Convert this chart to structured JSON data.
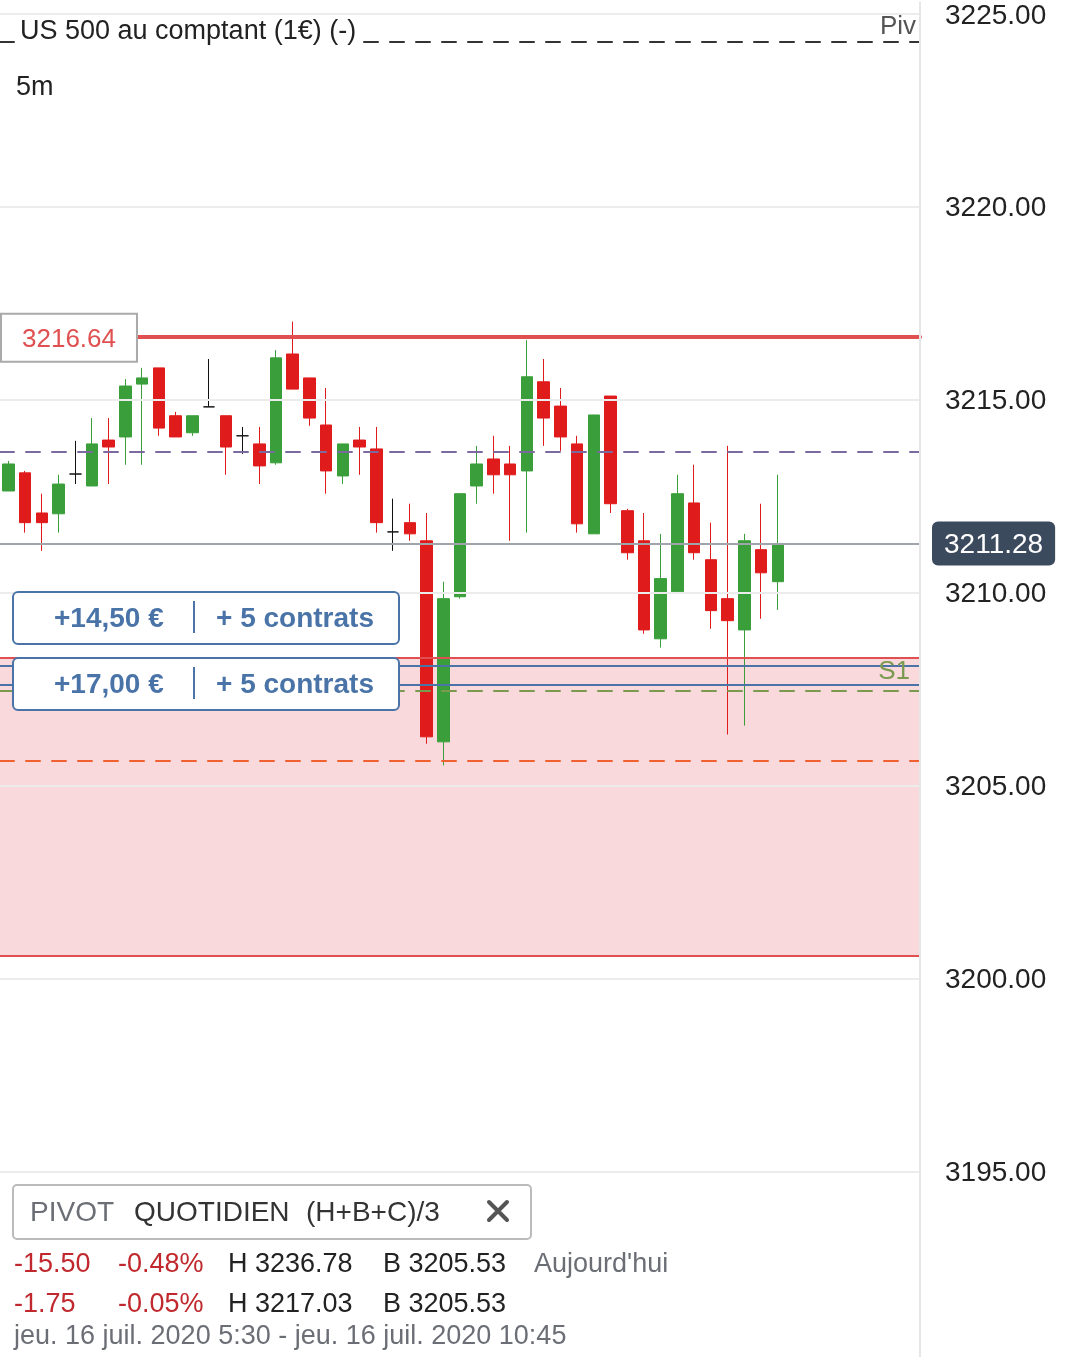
{
  "chart_data": {
    "type": "candlestick",
    "title": "US 500 au comptant (1€) (-)",
    "categories": [
      null,
      null,
      null,
      null,
      null,
      null,
      null,
      null,
      null,
      null,
      null,
      null,
      null,
      null,
      null,
      null,
      null,
      null,
      null,
      null,
      null,
      null,
      null,
      null,
      null,
      null,
      null,
      null,
      null,
      null,
      null,
      null,
      null,
      null,
      null,
      null,
      null,
      null,
      null,
      null,
      null,
      null,
      null,
      null,
      null,
      null,
      null,
      null,
      null,
      null,
      null,
      null,
      null,
      null,
      null
    ],
    "ohlc": [
      [
        3212.64,
        3213.42,
        3212.64,
        3213.34
      ],
      [
        3213.11,
        3213.16,
        3211.56,
        3211.82
      ],
      [
        3212.07,
        3212.57,
        3211.09,
        3211.82
      ],
      [
        3212.05,
        3213.06,
        3211.56,
        3212.82
      ],
      [
        3213.08,
        3213.94,
        3212.82,
        3213.08
      ],
      [
        3212.77,
        3214.53,
        3212.77,
        3213.86
      ],
      [
        3213.96,
        3214.53,
        3212.82,
        3213.78
      ],
      [
        3214.04,
        3215.54,
        3213.32,
        3215.36
      ],
      [
        3215.41,
        3215.83,
        3213.32,
        3215.57
      ],
      [
        3215.83,
        3215.83,
        3214.07,
        3214.27
      ],
      [
        3214.59,
        3214.69,
        3214.04,
        3214.04
      ],
      [
        3214.15,
        3214.59,
        3214.07,
        3214.59
      ],
      [
        3214.82,
        3216.06,
        3214.82,
        3214.82
      ],
      [
        3214.59,
        3214.59,
        3213.06,
        3213.78
      ],
      [
        3214.07,
        3214.3,
        3213.6,
        3214.07
      ],
      [
        3213.86,
        3214.3,
        3212.82,
        3213.29
      ],
      [
        3213.37,
        3216.29,
        3213.32,
        3216.09
      ],
      [
        3216.19,
        3217.03,
        3215.28,
        3215.28
      ],
      [
        3215.57,
        3215.57,
        3214.33,
        3214.53
      ],
      [
        3214.35,
        3215.31,
        3212.57,
        3213.16
      ],
      [
        3213.03,
        3213.86,
        3212.82,
        3213.86
      ],
      [
        3213.96,
        3214.3,
        3213.06,
        3213.78
      ],
      [
        3213.73,
        3214.3,
        3211.56,
        3211.82
      ],
      [
        3211.58,
        3212.44,
        3211.09,
        3211.58
      ],
      [
        3211.82,
        3212.31,
        3211.35,
        3211.53
      ],
      [
        3211.35,
        3212.07,
        3206.09,
        3206.27
      ],
      [
        3206.14,
        3210.29,
        3205.53,
        3209.85
      ],
      [
        3209.9,
        3212.57,
        3209.85,
        3212.57
      ],
      [
        3212.77,
        3213.81,
        3212.31,
        3213.34
      ],
      [
        3213.47,
        3214.07,
        3212.57,
        3213.06
      ],
      [
        3213.34,
        3213.81,
        3211.35,
        3213.06
      ],
      [
        3213.16,
        3216.55,
        3211.56,
        3215.6
      ],
      [
        3215.47,
        3216.06,
        3213.81,
        3214.53
      ],
      [
        3214.84,
        3215.31,
        3213.68,
        3214.04
      ],
      [
        3213.86,
        3214.07,
        3211.56,
        3211.79
      ],
      [
        3211.53,
        3214.61,
        3211.53,
        3214.61
      ],
      [
        3215.1,
        3215.1,
        3212.07,
        3212.31
      ],
      [
        3212.13,
        3212.18,
        3210.86,
        3211.04
      ],
      [
        3211.35,
        3212.07,
        3208.94,
        3209.04
      ],
      [
        3208.81,
        3211.53,
        3208.58,
        3210.37
      ],
      [
        3210.03,
        3213.06,
        3210.03,
        3212.57
      ],
      [
        3212.33,
        3213.32,
        3210.86,
        3211.04
      ],
      [
        3210.86,
        3211.82,
        3209.07,
        3209.54
      ],
      [
        3209.85,
        3213.81,
        3206.33,
        3209.28
      ],
      [
        3209.04,
        3211.53,
        3206.56,
        3211.35
      ],
      [
        3211.12,
        3212.31,
        3209.33,
        3210.52
      ],
      [
        3210.29,
        3213.06,
        3209.56,
        3211.28
      ],
      null,
      null,
      null,
      null,
      null,
      null,
      null,
      null
    ],
    "colors": [
      "#3a9f3a",
      "#e01b1b",
      "#e01b1b",
      "#3a9f3a",
      "#111111",
      "#3a9f3a",
      "#e01b1b",
      "#3a9f3a",
      "#3a9f3a",
      "#e01b1b",
      "#e01b1b",
      "#3a9f3a",
      "#111111",
      "#e01b1b",
      "#111111",
      "#e01b1b",
      "#3a9f3a",
      "#e01b1b",
      "#e01b1b",
      "#e01b1b",
      "#3a9f3a",
      "#e01b1b",
      "#e01b1b",
      "#111111",
      "#e01b1b",
      "#e01b1b",
      "#3a9f3a",
      "#3a9f3a",
      "#3a9f3a",
      "#e01b1b",
      "#e01b1b",
      "#3a9f3a",
      "#e01b1b",
      "#e01b1b",
      "#e01b1b",
      "#3a9f3a",
      "#e01b1b",
      "#e01b1b",
      "#e01b1b",
      "#3a9f3a",
      "#3a9f3a",
      "#e01b1b",
      "#e01b1b",
      "#e01b1b",
      "#3a9f3a",
      "#e01b1b",
      "#3a9f3a",
      null,
      null,
      null,
      null,
      null,
      null,
      null,
      null
    ],
    "ylim": [
      3190.2,
      3225.3
    ],
    "yticks": [
      {
        "value": 3195,
        "label": "3195.00"
      },
      {
        "value": 3200,
        "label": "3200.00"
      },
      {
        "value": 3205,
        "label": "3205.00"
      },
      {
        "value": 3210,
        "label": "3210.00"
      },
      {
        "value": 3215,
        "label": "3215.00"
      },
      {
        "value": 3220,
        "label": "3220.00"
      },
      {
        "value": 3225,
        "label": "3225.00"
      }
    ],
    "tick_labels": "y",
    "grid": "y",
    "bands": [
      {
        "axis": "y",
        "from": 3200.6,
        "to": 3208.32,
        "color": "#f9d9dc"
      }
    ],
    "ref_lines": [
      {
        "axis": "y",
        "value": 3224.27,
        "label": "Piv",
        "color": "#333333",
        "line_style": "dashed"
      },
      {
        "axis": "y",
        "value": 3216.64,
        "label": "3216.64",
        "color": "#e05050",
        "line_style": "solid"
      },
      {
        "axis": "y",
        "value": 3213.65,
        "color": "#7b6aa0",
        "line_style": "dashed"
      },
      {
        "axis": "y",
        "value": 3211.28,
        "label": "3211.28",
        "color": "#a0a4ab",
        "line_style": "solid"
      },
      {
        "axis": "y",
        "value": 3208.32,
        "color": "#e05050",
        "line_style": "solid"
      },
      {
        "axis": "y",
        "value": 3200.6,
        "color": "#e05050",
        "line_style": "solid"
      },
      {
        "axis": "y",
        "value": 3208.11,
        "color": "#4a74a8",
        "line_style": "solid"
      },
      {
        "axis": "y",
        "value": 3207.62,
        "color": "#4a74a8",
        "line_style": "solid"
      },
      {
        "axis": "y",
        "value": 3207.46,
        "label": "S1",
        "color": "#7a9a50",
        "line_style": "dashed"
      },
      {
        "axis": "y",
        "value": 3205.65,
        "color": "#f06030",
        "line_style": "dashed"
      }
    ],
    "annotations": [
      "5m",
      "+14,50 €",
      "+ 5 contrats",
      "+17,00 €",
      "+ 5 contrats",
      "PIVOT",
      "QUOTIDIEN",
      "(H+B+C)/3",
      "-15.50",
      "-0.48%",
      "H 3236.78",
      "B 3205.53",
      "Aujourd'hui",
      "-1.75",
      "-0.05%",
      "H 3217.03",
      "B 3205.53",
      "jeu. 16 juil. 2020 5:30 - jeu. 16 juil. 2020 10:45"
    ]
  }
}
